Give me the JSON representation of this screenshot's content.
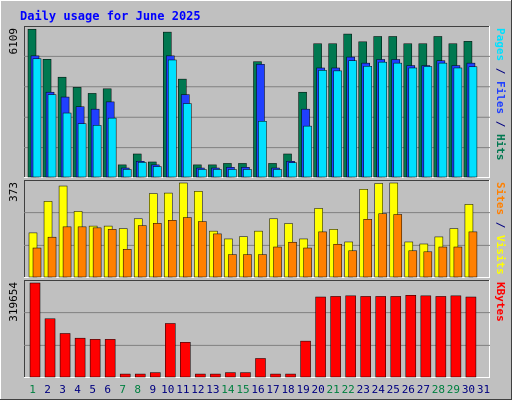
{
  "title": "Daily usage for June 2025",
  "colors": {
    "background": "#c0c0c0",
    "plot": "#c0c0c0",
    "title": "#0000ff",
    "pages": "#00e0ff",
    "files": "#2040ff",
    "hits": "#007850",
    "visits": "#ffff00",
    "sites": "#ff8000",
    "kbytes": "#ff0000",
    "grid": "#808080",
    "weekend": "#008040",
    "weekday": "#000080"
  },
  "chart_data": [
    {
      "type": "bar",
      "name": "hits-files-pages",
      "y_max_label": "6109",
      "ymax": 6109,
      "ylabel_parts": [
        {
          "text": "Pages",
          "color_key": "pages"
        },
        {
          "text": " / ",
          "color_key": "weekday"
        },
        {
          "text": "Files",
          "color_key": "files"
        },
        {
          "text": " / ",
          "color_key": "weekday"
        },
        {
          "text": "Hits",
          "color_key": "hits"
        }
      ],
      "series": [
        {
          "name": "Hits",
          "color_key": "hits",
          "values": [
            6100,
            4860,
            4120,
            3700,
            3450,
            3640,
            500,
            950,
            620,
            5980,
            4040,
            500,
            500,
            560,
            560,
            4760,
            560,
            950,
            3500,
            5500,
            5500,
            5900,
            5580,
            5800,
            5800,
            5500,
            5500,
            5800,
            5500,
            5600
          ]
        },
        {
          "name": "Files",
          "color_key": "files",
          "values": [
            5000,
            3500,
            3300,
            2900,
            2800,
            3100,
            370,
            650,
            500,
            5000,
            3400,
            370,
            370,
            400,
            400,
            4650,
            370,
            650,
            2800,
            4500,
            4500,
            4950,
            4700,
            4850,
            4850,
            4600,
            4600,
            4800,
            4600,
            4700
          ]
        },
        {
          "name": "Pages",
          "color_key": "pages",
          "values": [
            4880,
            3400,
            2640,
            2200,
            2130,
            2430,
            310,
            600,
            430,
            4830,
            3030,
            310,
            310,
            310,
            310,
            2300,
            310,
            590,
            2100,
            4400,
            4380,
            4800,
            4570,
            4740,
            4700,
            4500,
            4560,
            4700,
            4500,
            4550
          ]
        }
      ]
    },
    {
      "type": "bar",
      "name": "visits-sites",
      "y_max_label": "373",
      "ymax": 373,
      "ylabel_parts": [
        {
          "text": "Sites",
          "color_key": "sites"
        },
        {
          "text": " / ",
          "color_key": "weekday"
        },
        {
          "text": "Visits",
          "color_key": "visits"
        }
      ],
      "series": [
        {
          "name": "Visits",
          "color_key": "visits",
          "values": [
            175,
            300,
            361,
            260,
            202,
            202,
            192,
            231,
            331,
            333,
            373,
            340,
            182,
            151,
            160,
            182,
            231,
            212,
            151,
            272,
            189,
            139,
            348,
            371,
            373,
            139,
            131,
            159,
            192,
            288
          ]
        },
        {
          "name": "Sites",
          "color_key": "sites",
          "values": [
            115,
            158,
            199,
            199,
            195,
            189,
            110,
            204,
            213,
            225,
            236,
            220,
            171,
            89,
            89,
            89,
            119,
            138,
            115,
            179,
            130,
            104,
            229,
            251,
            248,
            104,
            100,
            119,
            119,
            179
          ]
        }
      ]
    },
    {
      "type": "bar",
      "name": "kbytes",
      "y_max_label": "319654",
      "ymax": 319654,
      "ylabel_parts": [
        {
          "text": "KBytes",
          "color_key": "kbytes"
        }
      ],
      "series": [
        {
          "name": "KBytes",
          "color_key": "kbytes",
          "values": [
            319654,
            198000,
            148000,
            132000,
            128000,
            128000,
            10000,
            10000,
            15000,
            182000,
            118000,
            10000,
            10000,
            15000,
            15000,
            63000,
            10000,
            10000,
            122000,
            272000,
            274000,
            276000,
            274000,
            274000,
            274000,
            278000,
            276000,
            274000,
            276000,
            272000
          ]
        }
      ]
    }
  ],
  "x_axis": {
    "days": [
      "1",
      "2",
      "3",
      "4",
      "5",
      "6",
      "7",
      "8",
      "9",
      "10",
      "11",
      "12",
      "13",
      "14",
      "15",
      "16",
      "17",
      "18",
      "19",
      "20",
      "21",
      "22",
      "23",
      "24",
      "25",
      "26",
      "27",
      "28",
      "29",
      "30",
      "31"
    ],
    "weekend_days": [
      "1",
      "7",
      "8",
      "14",
      "15",
      "21",
      "22",
      "28",
      "29"
    ]
  }
}
